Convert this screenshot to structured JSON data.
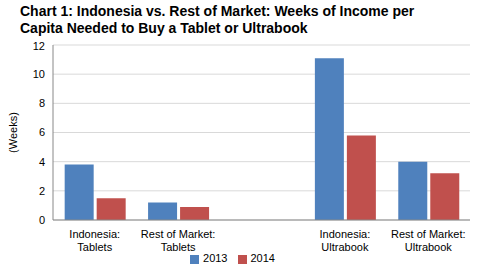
{
  "chart_data": {
    "type": "bar",
    "title": "Chart 1: Indonesia vs. Rest of Market: Weeks of Income per Capita Needed to Buy a Tablet or Ultrabook",
    "y_label": "(Weeks)",
    "categories": [
      "Indonesia: Tablets",
      "Rest of Market: Tablets",
      null,
      "Indonesia: Ultrabook",
      "Rest of Market: Ultrabook"
    ],
    "series": [
      {
        "name": "2013",
        "color": "#4f81bd",
        "values": [
          3.8,
          1.2,
          null,
          11.1,
          4.0
        ]
      },
      {
        "name": "2014",
        "color": "#c0504d",
        "values": [
          1.5,
          0.9,
          null,
          5.8,
          3.2
        ]
      }
    ],
    "ylim": [
      0,
      12
    ],
    "yticks": [
      0,
      2,
      4,
      6,
      8,
      10,
      12
    ],
    "grid": true,
    "legend": "bottom"
  }
}
